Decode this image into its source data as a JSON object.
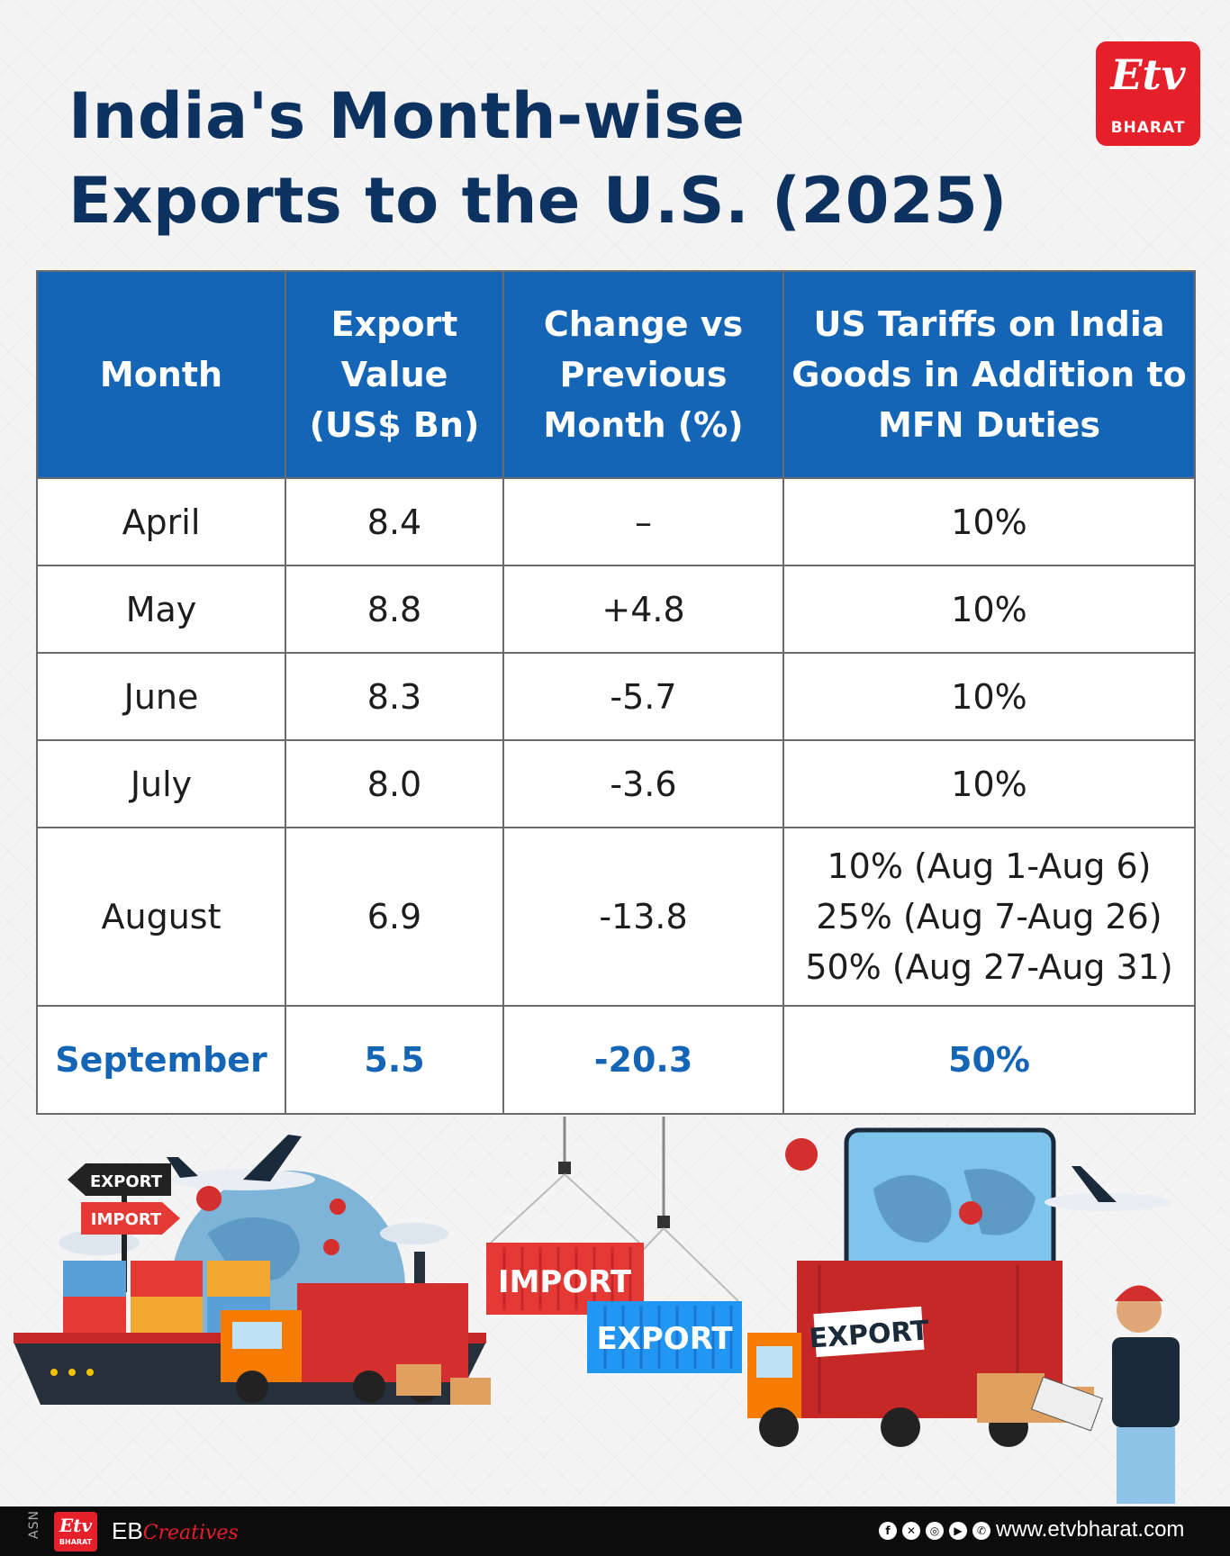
{
  "title": {
    "line1": "India's Month-wise",
    "line2": "Exports to the U.S. (2025)"
  },
  "brand": {
    "logo_mark": "Etv",
    "logo_word": "BHARAT",
    "icon": "etv-bharat-logo"
  },
  "table": {
    "headers": {
      "month": [
        "Month"
      ],
      "export_value": [
        "Export",
        "Value",
        "(US$ Bn)"
      ],
      "change": [
        "Change vs",
        "Previous",
        "Month (%)"
      ],
      "tariffs": [
        "US Tariffs on India",
        "Goods in Addition to",
        "MFN Duties"
      ]
    },
    "rows": [
      {
        "month": "April",
        "value": "8.4",
        "change": "–",
        "tariffs": [
          "10%"
        ]
      },
      {
        "month": "May",
        "value": "8.8",
        "change": "+4.8",
        "tariffs": [
          "10%"
        ]
      },
      {
        "month": "June",
        "value": "8.3",
        "change": "-5.7",
        "tariffs": [
          "10%"
        ]
      },
      {
        "month": "July",
        "value": "8.0",
        "change": "-3.6",
        "tariffs": [
          "10%"
        ]
      },
      {
        "month": "August",
        "value": "6.9",
        "change": "-13.8",
        "tariffs": [
          "10% (Aug 1-Aug 6)",
          "25% (Aug 7-Aug 26)",
          "50% (Aug 27-Aug 31)"
        ]
      },
      {
        "month": "September",
        "value": "5.5",
        "change": "-20.3",
        "tariffs": [
          "50%"
        ]
      }
    ]
  },
  "illustration": {
    "signpost_export": "EXPORT",
    "signpost_import": "IMPORT",
    "container_import": "IMPORT",
    "container_export": "EXPORT",
    "truck_label": "EXPORT"
  },
  "footer": {
    "asn": "ASN",
    "logo_mark": "Etv",
    "logo_word": "BHARAT",
    "eb": "EB",
    "eb_script": "Creatives",
    "social_icons": [
      "facebook-icon",
      "x-icon",
      "instagram-icon",
      "youtube-icon",
      "whatsapp-icon"
    ],
    "website": "www.etvbharat.com"
  },
  "colors": {
    "title": "#0e3260",
    "header_bg": "#1565b6",
    "highlight": "#1565b6",
    "brand_red": "#e5202b"
  }
}
